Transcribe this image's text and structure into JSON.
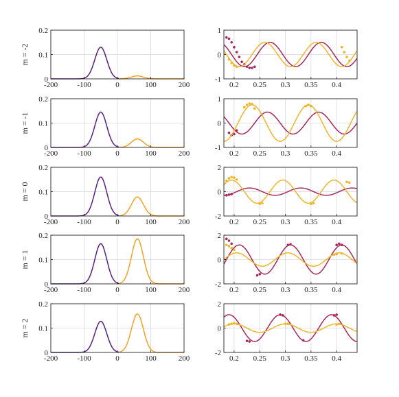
{
  "chart_data": [
    {
      "type": "line",
      "row_label": "m = -2",
      "xlim": [
        -200,
        200
      ],
      "ylim": [
        0,
        0.2
      ],
      "xticks": [
        "-200",
        "-100",
        "0",
        "100",
        "200"
      ],
      "yticks": [
        "0",
        "0.1",
        "0.2"
      ],
      "grid": true,
      "series": [
        {
          "color": "#5a1e82",
          "peak_x": -50,
          "peak_y": 0.13,
          "width": 18
        },
        {
          "color": "#f5a122",
          "peak_x": 60,
          "peak_y": 0.012,
          "width": 18
        }
      ]
    },
    {
      "type": "line",
      "xlim": [
        0.18,
        0.44
      ],
      "ylim": [
        -1,
        1
      ],
      "xticks": [
        "0.2",
        "0.25",
        "0.3",
        "0.35",
        "0.4"
      ],
      "yticks": [
        "-1",
        "0",
        "1"
      ],
      "grid": true,
      "series": [
        {
          "kind": "wave",
          "color": "#a6275c",
          "amplitude": 0.5,
          "period": 0.1,
          "phase_x": 0.27,
          "decay": 0.0,
          "points": [
            [
              0.185,
              0.7
            ],
            [
              0.19,
              0.65
            ],
            [
              0.195,
              0.5
            ],
            [
              0.2,
              0.3
            ],
            [
              0.205,
              0.1
            ],
            [
              0.21,
              -0.1
            ],
            [
              0.215,
              -0.3
            ],
            [
              0.22,
              -0.4
            ],
            [
              0.225,
              -0.5
            ],
            [
              0.23,
              -0.55
            ],
            [
              0.235,
              -0.55
            ],
            [
              0.24,
              -0.5
            ]
          ]
        },
        {
          "kind": "wave",
          "color": "#f0b429",
          "amplitude": 0.5,
          "period": 0.1,
          "phase_x": 0.26,
          "decay": 0.0,
          "points": [
            [
              0.19,
              -0.2
            ],
            [
              0.195,
              -0.35
            ],
            [
              0.2,
              -0.45
            ],
            [
              0.205,
              -0.5
            ],
            [
              0.41,
              0.3
            ],
            [
              0.415,
              0.1
            ],
            [
              0.42,
              -0.1
            ],
            [
              0.425,
              -0.25
            ]
          ]
        }
      ]
    },
    {
      "type": "line",
      "row_label": "m = -1",
      "xlim": [
        -200,
        200
      ],
      "ylim": [
        0,
        0.2
      ],
      "xticks": [
        "-200",
        "-100",
        "0",
        "100",
        "200"
      ],
      "yticks": [
        "0",
        "0.1",
        "0.2"
      ],
      "grid": true,
      "series": [
        {
          "color": "#5a1e82",
          "peak_x": -50,
          "peak_y": 0.145,
          "width": 18
        },
        {
          "color": "#f5a122",
          "peak_x": 60,
          "peak_y": 0.035,
          "width": 18
        }
      ]
    },
    {
      "type": "line",
      "xlim": [
        0.18,
        0.44
      ],
      "ylim": [
        -1,
        1
      ],
      "xticks": [
        "0.2",
        "0.25",
        "0.3",
        "0.35",
        "0.4"
      ],
      "yticks": [
        "-1",
        "0",
        "1"
      ],
      "grid": true,
      "series": [
        {
          "kind": "wave",
          "color": "#a6275c",
          "amplitude": 0.45,
          "period": 0.1,
          "phase_x": 0.265,
          "decay": 0.0,
          "points": [
            [
              0.19,
              -0.4
            ],
            [
              0.195,
              -0.5
            ],
            [
              0.2,
              -0.45
            ],
            [
              0.205,
              -0.3
            ]
          ]
        },
        {
          "kind": "wave",
          "color": "#f0b429",
          "amplitude": 0.75,
          "period": 0.11,
          "phase_x": 0.235,
          "decay": 0.0,
          "points": [
            [
              0.22,
              0.65
            ],
            [
              0.225,
              0.75
            ],
            [
              0.23,
              0.8
            ],
            [
              0.235,
              0.78
            ],
            [
              0.24,
              0.6
            ],
            [
              0.34,
              0.7
            ],
            [
              0.345,
              0.75
            ],
            [
              0.35,
              0.7
            ]
          ]
        }
      ]
    },
    {
      "type": "line",
      "row_label": "m = 0",
      "xlim": [
        -200,
        200
      ],
      "ylim": [
        0,
        0.2
      ],
      "xticks": [
        "-200",
        "-100",
        "0",
        "100",
        "200"
      ],
      "yticks": [
        "0",
        "0.1",
        "0.2"
      ],
      "grid": true,
      "series": [
        {
          "color": "#5a1e82",
          "peak_x": -50,
          "peak_y": 0.16,
          "width": 18
        },
        {
          "color": "#f5a122",
          "peak_x": 60,
          "peak_y": 0.078,
          "width": 18
        }
      ]
    },
    {
      "type": "line",
      "xlim": [
        0.18,
        0.44
      ],
      "ylim": [
        -2,
        2
      ],
      "xticks": [
        "0.2",
        "0.25",
        "0.3",
        "0.35",
        "0.4"
      ],
      "yticks": [
        "-2",
        "0",
        "2"
      ],
      "grid": true,
      "series": [
        {
          "kind": "wave",
          "color": "#a6275c",
          "amplitude": 0.3,
          "period": 0.1,
          "phase_x": 0.23,
          "decay": 0.0,
          "points": [
            [
              0.185,
              -0.3
            ],
            [
              0.19,
              -0.25
            ],
            [
              0.195,
              -0.2
            ]
          ]
        },
        {
          "kind": "wave",
          "color": "#f0b429",
          "amplitude": 0.95,
          "period": 0.1,
          "phase_x": 0.195,
          "decay": 0.0,
          "points": [
            [
              0.185,
              0.9
            ],
            [
              0.19,
              1.1
            ],
            [
              0.195,
              1.2
            ],
            [
              0.2,
              1.15
            ],
            [
              0.205,
              1.0
            ],
            [
              0.25,
              -1.0
            ],
            [
              0.255,
              -0.95
            ],
            [
              0.35,
              -1.0
            ],
            [
              0.355,
              -0.95
            ],
            [
              0.42,
              0.8
            ],
            [
              0.425,
              0.75
            ]
          ]
        }
      ]
    },
    {
      "type": "line",
      "row_label": "m = 1",
      "xlim": [
        -200,
        200
      ],
      "ylim": [
        0,
        0.2
      ],
      "xticks": [
        "-200",
        "-100",
        "0",
        "100",
        "200"
      ],
      "yticks": [
        "0",
        "0.1",
        "0.2"
      ],
      "grid": true,
      "series": [
        {
          "color": "#5a1e82",
          "peak_x": -50,
          "peak_y": 0.165,
          "width": 18
        },
        {
          "color": "#f5a122",
          "peak_x": 60,
          "peak_y": 0.185,
          "width": 18
        }
      ]
    },
    {
      "type": "line",
      "xlim": [
        0.18,
        0.44
      ],
      "ylim": [
        -2,
        2
      ],
      "xticks": [
        "0.2",
        "0.25",
        "0.3",
        "0.35",
        "0.4"
      ],
      "yticks": [
        "-2",
        "0",
        "2"
      ],
      "grid": true,
      "series": [
        {
          "kind": "wave",
          "color": "#a6275c",
          "amplitude": 1.2,
          "period": 0.1,
          "phase_x": 0.21,
          "decay": 0.0,
          "points": [
            [
              0.185,
              1.7
            ],
            [
              0.19,
              1.55
            ],
            [
              0.195,
              1.3
            ],
            [
              0.245,
              -1.3
            ],
            [
              0.25,
              -1.2
            ],
            [
              0.305,
              1.2
            ],
            [
              0.31,
              1.25
            ],
            [
              0.4,
              1.2
            ],
            [
              0.405,
              1.3
            ],
            [
              0.41,
              1.2
            ]
          ]
        },
        {
          "kind": "wave",
          "color": "#f0b429",
          "amplitude": 0.55,
          "period": 0.1,
          "phase_x": 0.205,
          "decay": 0.0,
          "points": [
            [
              0.185,
              1.2
            ],
            [
              0.19,
              1.1
            ],
            [
              0.195,
              0.95
            ],
            [
              0.2,
              0.8
            ],
            [
              0.395,
              0.4
            ],
            [
              0.4,
              0.45
            ],
            [
              0.41,
              0.5
            ]
          ]
        }
      ]
    },
    {
      "type": "line",
      "row_label": "m = 2",
      "xlim": [
        -200,
        200
      ],
      "ylim": [
        0,
        0.2
      ],
      "xticks": [
        "-200",
        "-100",
        "0",
        "100",
        "200"
      ],
      "yticks": [
        "0",
        "0.1",
        "0.2"
      ],
      "grid": true,
      "series": [
        {
          "color": "#5a1e82",
          "peak_x": -50,
          "peak_y": 0.128,
          "width": 18
        },
        {
          "color": "#f5a122",
          "peak_x": 60,
          "peak_y": 0.158,
          "width": 18
        }
      ]
    },
    {
      "type": "line",
      "xlim": [
        0.18,
        0.44
      ],
      "ylim": [
        -2,
        2
      ],
      "xticks": [
        "0.2",
        "0.25",
        "0.3",
        "0.35",
        "0.4"
      ],
      "yticks": [
        "-2",
        "0",
        "2"
      ],
      "grid": true,
      "series": [
        {
          "kind": "wave",
          "color": "#a6275c",
          "amplitude": 1.1,
          "period": 0.1,
          "phase_x": 0.29,
          "decay": 0.0,
          "points": [
            [
              0.225,
              -1.05
            ],
            [
              0.23,
              -1.1
            ],
            [
              0.29,
              1.1
            ],
            [
              0.295,
              1.05
            ],
            [
              0.335,
              -1.0
            ],
            [
              0.395,
              1.05
            ],
            [
              0.4,
              1.1
            ]
          ]
        },
        {
          "kind": "wave",
          "color": "#f0b429",
          "amplitude": 0.35,
          "period": 0.1,
          "phase_x": 0.2,
          "decay": 0.0,
          "points": [
            [
              0.19,
              0.3
            ],
            [
              0.195,
              0.35
            ],
            [
              0.2,
              0.4
            ],
            [
              0.205,
              0.35
            ],
            [
              0.3,
              0.35
            ],
            [
              0.305,
              0.35
            ],
            [
              0.4,
              0.3
            ],
            [
              0.405,
              0.35
            ]
          ]
        }
      ]
    }
  ]
}
